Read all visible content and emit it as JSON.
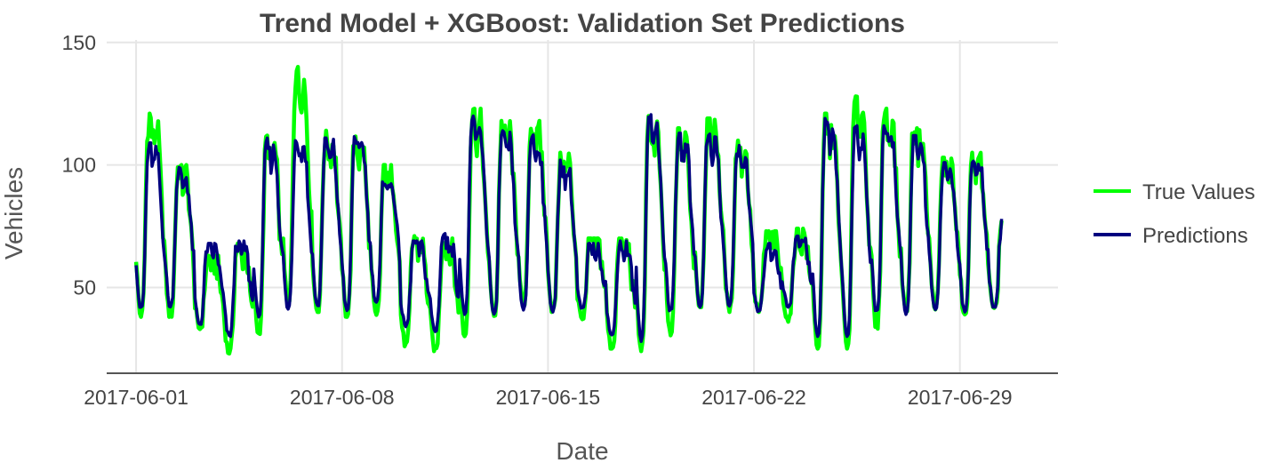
{
  "chart_data": {
    "type": "line",
    "title": "Trend Model + XGBoost: Validation Set Predictions",
    "xlabel": "Date",
    "ylabel": "Vehicles",
    "x_range": [
      "2017-06-01",
      "2017-06-30"
    ],
    "xlim": [
      "2017-05-31T00:00",
      "2017-07-02T08:00"
    ],
    "ylim": [
      15,
      151
    ],
    "x_ticks": [
      "2017-06-01",
      "2017-06-08",
      "2017-06-15",
      "2017-06-22",
      "2017-06-29"
    ],
    "y_ticks": [
      50,
      100,
      150
    ],
    "grid": true,
    "legend_position": "right",
    "daily_min_max": {
      "dates": [
        "2017-06-01",
        "2017-06-02",
        "2017-06-03",
        "2017-06-04",
        "2017-06-05",
        "2017-06-06",
        "2017-06-07",
        "2017-06-08",
        "2017-06-09",
        "2017-06-10",
        "2017-06-11",
        "2017-06-12",
        "2017-06-13",
        "2017-06-14",
        "2017-06-15",
        "2017-06-16",
        "2017-06-17",
        "2017-06-18",
        "2017-06-19",
        "2017-06-20",
        "2017-06-21",
        "2017-06-22",
        "2017-06-23",
        "2017-06-24",
        "2017-06-25",
        "2017-06-26",
        "2017-06-27",
        "2017-06-28",
        "2017-06-29",
        "2017-06-30"
      ],
      "true_min": [
        38,
        38,
        33,
        23,
        31,
        42,
        40,
        38,
        38,
        26,
        24,
        30,
        38,
        42,
        40,
        37,
        25,
        24,
        30,
        42,
        40,
        40,
        36,
        25,
        25,
        33,
        40,
        41,
        38,
        40
      ],
      "true_max": [
        121,
        100,
        63,
        68,
        112,
        140,
        114,
        112,
        100,
        71,
        70,
        123,
        118,
        118,
        105,
        70,
        70,
        120,
        115,
        119,
        110,
        73,
        74,
        121,
        128,
        123,
        117,
        103,
        105,
        80
      ],
      "pred_min": [
        41,
        42,
        35,
        30,
        38,
        41,
        42,
        40,
        44,
        34,
        32,
        39,
        38,
        40,
        40,
        41,
        30,
        28,
        40,
        42,
        42,
        40,
        42,
        30,
        30,
        40,
        39,
        40,
        40,
        42
      ],
      "pred_max": [
        109,
        99,
        68,
        69,
        111,
        113,
        111,
        113,
        96,
        69,
        72,
        120,
        114,
        113,
        102,
        68,
        69,
        122,
        113,
        114,
        108,
        68,
        71,
        121,
        116,
        116,
        112,
        101,
        104,
        78
      ]
    },
    "series": [
      {
        "name": "True Values",
        "color": "#00ff00"
      },
      {
        "name": "Predictions",
        "color": "#00007f"
      }
    ]
  }
}
